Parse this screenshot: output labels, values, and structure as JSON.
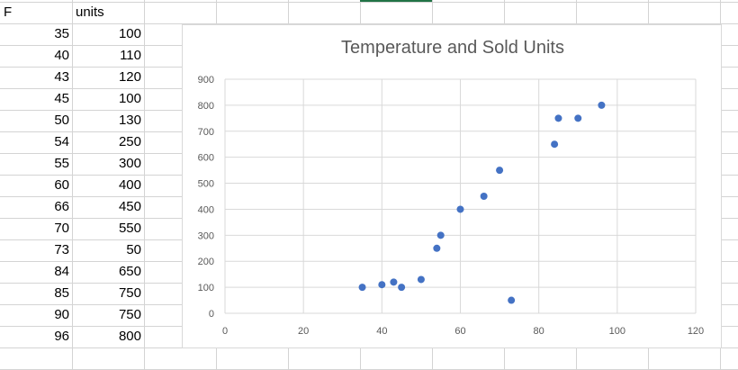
{
  "sheet": {
    "headers": {
      "col_a": "F",
      "col_b": "units"
    },
    "rows": [
      {
        "f": "35",
        "units": "100"
      },
      {
        "f": "40",
        "units": "110"
      },
      {
        "f": "43",
        "units": "120"
      },
      {
        "f": "45",
        "units": "100"
      },
      {
        "f": "50",
        "units": "130"
      },
      {
        "f": "54",
        "units": "250"
      },
      {
        "f": "55",
        "units": "300"
      },
      {
        "f": "60",
        "units": "400"
      },
      {
        "f": "66",
        "units": "450"
      },
      {
        "f": "70",
        "units": "550"
      },
      {
        "f": "73",
        "units": "50"
      },
      {
        "f": "84",
        "units": "650"
      },
      {
        "f": "85",
        "units": "750"
      },
      {
        "f": "90",
        "units": "750"
      },
      {
        "f": "96",
        "units": "800"
      }
    ]
  },
  "chart_data": {
    "type": "scatter",
    "title": "Temperature and Sold Units",
    "xlabel": "",
    "ylabel": "",
    "xlim": [
      0,
      120
    ],
    "ylim": [
      0,
      900
    ],
    "x_ticks": [
      0,
      20,
      40,
      60,
      80,
      100,
      120
    ],
    "y_ticks": [
      0,
      100,
      200,
      300,
      400,
      500,
      600,
      700,
      800,
      900
    ],
    "grid": true,
    "legend": "none",
    "marker_color": "#4472c4",
    "series": [
      {
        "x": [
          35,
          40,
          43,
          45,
          50,
          54,
          55,
          60,
          66,
          70,
          73,
          84,
          85,
          90,
          96
        ],
        "y": [
          100,
          110,
          120,
          100,
          130,
          250,
          300,
          400,
          450,
          550,
          50,
          650,
          750,
          750,
          800
        ]
      }
    ]
  }
}
